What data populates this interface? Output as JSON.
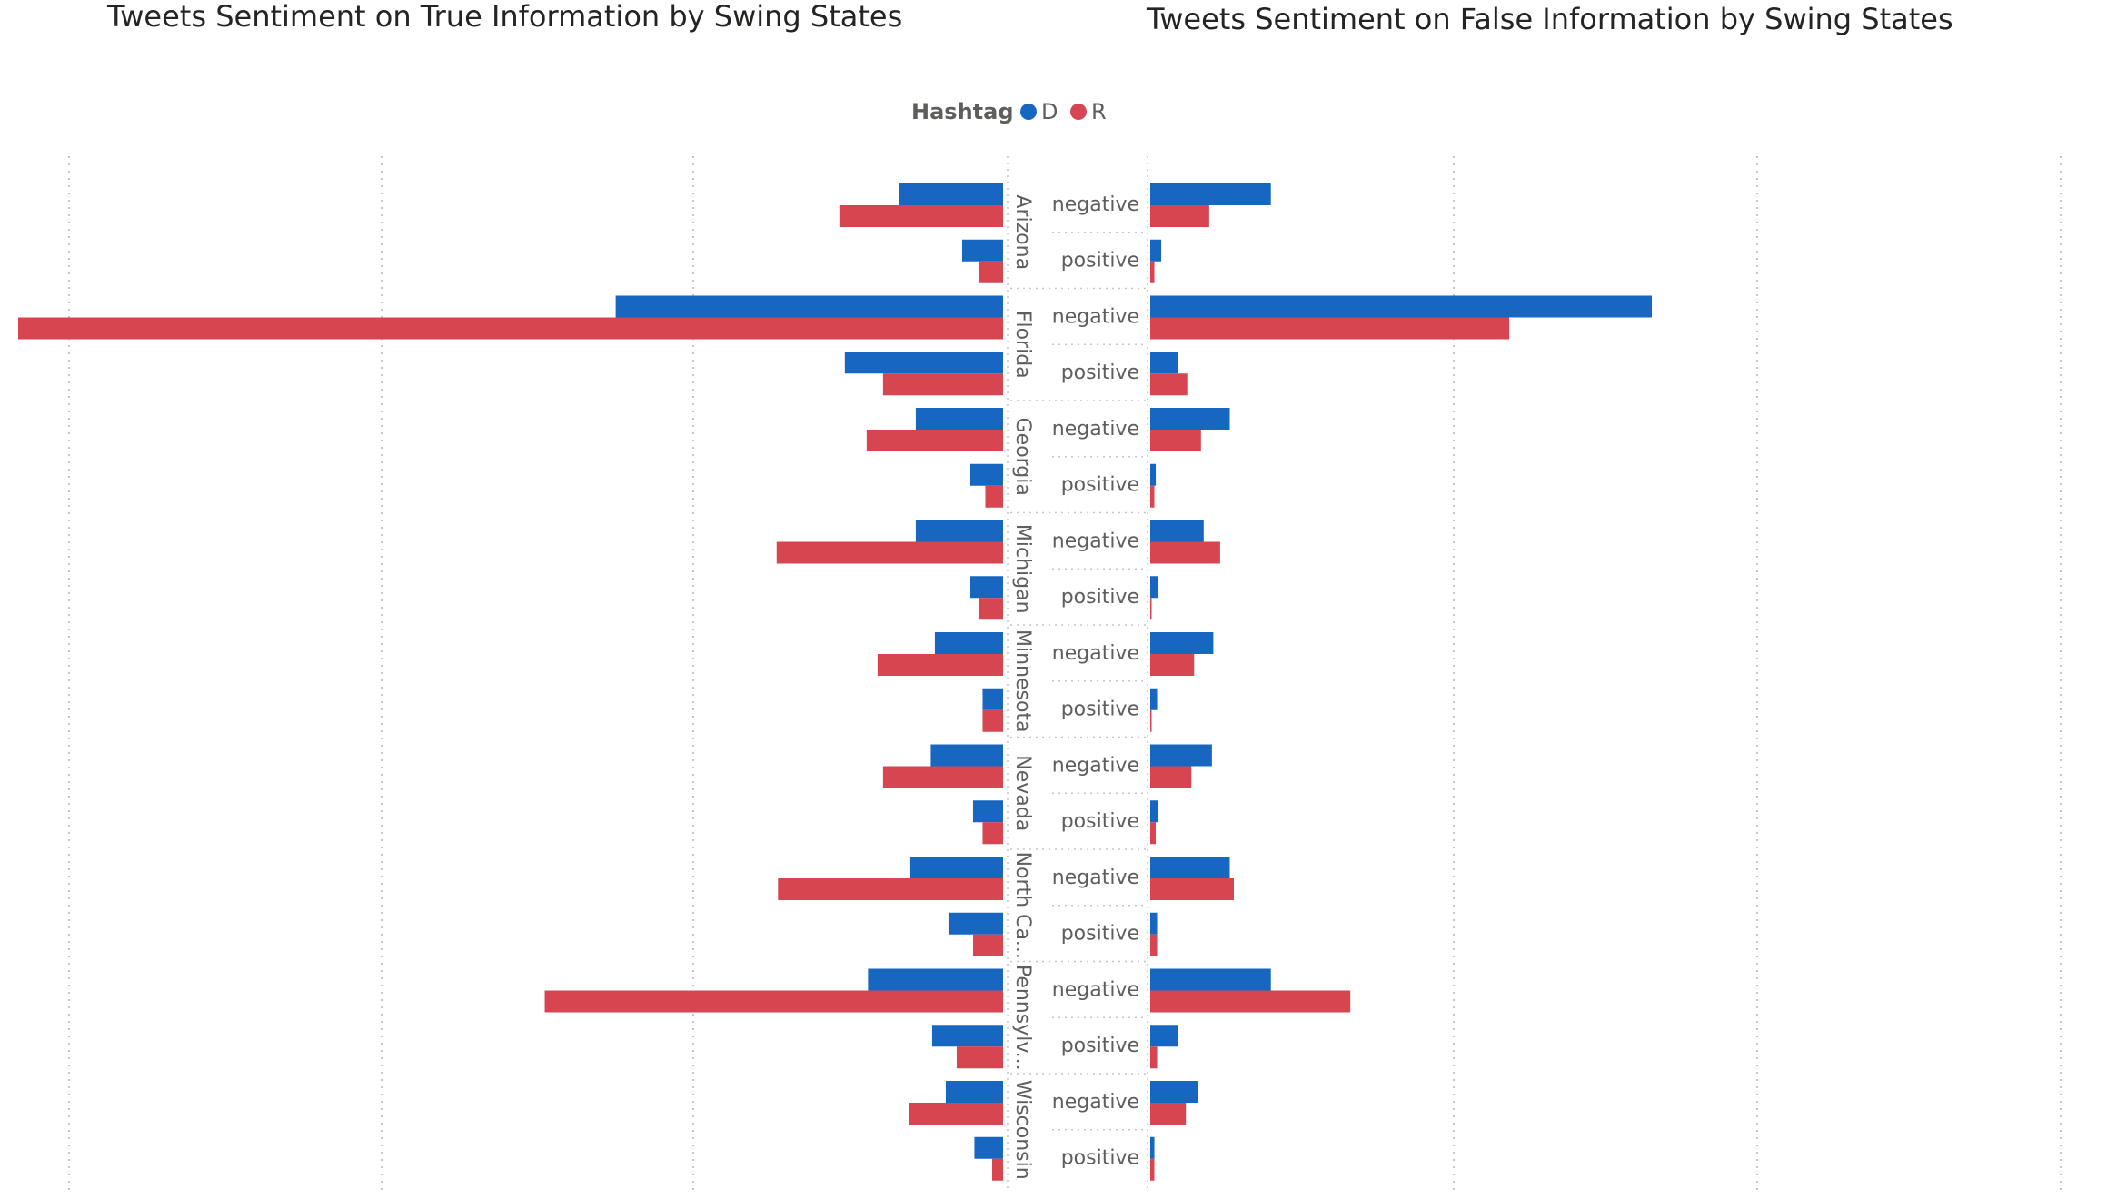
{
  "titles": {
    "left": "Tweets Sentiment on True Information by Swing States",
    "right": "Tweets Sentiment on False Information by Swing States"
  },
  "legend": {
    "title": "Hashtag",
    "items": [
      {
        "label": "D",
        "color": "#1767c0"
      },
      {
        "label": "R",
        "color": "#d64550"
      }
    ]
  },
  "chart_data": [
    {
      "type": "bar",
      "orientation": "horizontal",
      "title": "Tweets Sentiment on True Information by Swing States",
      "states": [
        "Arizona",
        "Florida",
        "Georgia",
        "Michigan",
        "Minnesota",
        "Nevada",
        "North Ca...",
        "Pennsylv...",
        "Wisconsin"
      ],
      "sentiments": [
        "negative",
        "positive"
      ],
      "series": [
        {
          "name": "D",
          "color": "#1767c0",
          "values": [
            [
              76,
              30
            ],
            [
              284,
              116
            ],
            [
              64,
              24
            ],
            [
              64,
              24
            ],
            [
              50,
              15
            ],
            [
              53,
              22
            ],
            [
              68,
              40
            ],
            [
              99,
              52
            ],
            [
              42,
              21
            ]
          ]
        },
        {
          "name": "R",
          "color": "#d64550",
          "values": [
            [
              120,
              18
            ],
            [
              722,
              88
            ],
            [
              100,
              13
            ],
            [
              166,
              18
            ],
            [
              92,
              15
            ],
            [
              88,
              15
            ],
            [
              165,
              22
            ],
            [
              336,
              34
            ],
            [
              69,
              8
            ]
          ]
        }
      ],
      "xlim": [
        0,
        722
      ],
      "grid": true
    },
    {
      "type": "bar",
      "orientation": "horizontal",
      "title": "Tweets Sentiment on False Information by Swing States",
      "states": [
        "Arizona",
        "Florida",
        "Georgia",
        "Michigan",
        "Minnesota",
        "Nevada",
        "North Ca...",
        "Pennsylv...",
        "Wisconsin"
      ],
      "sentiments": [
        "negative",
        "positive"
      ],
      "series": [
        {
          "name": "D",
          "color": "#1767c0",
          "values": [
            [
              88,
              8
            ],
            [
              366,
              20
            ],
            [
              58,
              4
            ],
            [
              39,
              6
            ],
            [
              46,
              5
            ],
            [
              45,
              6
            ],
            [
              58,
              5
            ],
            [
              88,
              20
            ],
            [
              35,
              3
            ]
          ]
        },
        {
          "name": "R",
          "color": "#d64550",
          "values": [
            [
              43,
              3
            ],
            [
              262,
              27
            ],
            [
              37,
              3
            ],
            [
              51,
              1
            ],
            [
              32,
              1
            ],
            [
              30,
              4
            ],
            [
              61,
              5
            ],
            [
              146,
              5
            ],
            [
              26,
              3
            ]
          ]
        }
      ],
      "xlim": [
        0,
        366
      ],
      "grid": true
    }
  ]
}
